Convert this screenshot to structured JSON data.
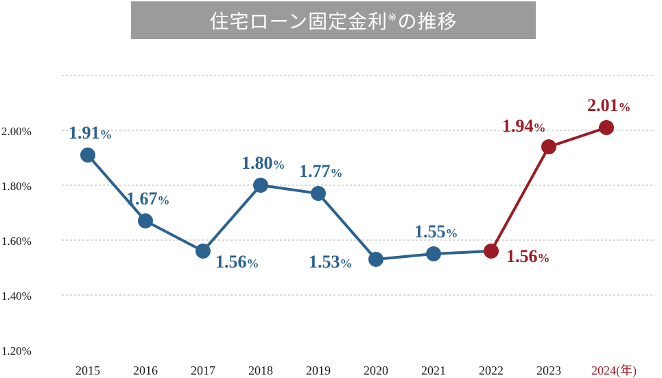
{
  "title": {
    "main": "住宅ローン固定金利",
    "mark": "※",
    "suffix": "の推移"
  },
  "chart_data": {
    "type": "line",
    "ylim": [
      1.2,
      2.2
    ],
    "y_ticks": [
      {
        "value": 2.0,
        "label": "2.00%"
      },
      {
        "value": 1.8,
        "label": "1.80%"
      },
      {
        "value": 1.6,
        "label": "1.60%"
      },
      {
        "value": 1.4,
        "label": "1.40%"
      },
      {
        "value": 1.2,
        "label": "1.20%"
      }
    ],
    "grid_values": [
      2.2,
      2.0,
      1.8,
      1.6,
      1.4
    ],
    "grid": "dashed horizontal",
    "x_unit_label": "(年)",
    "colors": {
      "history": "#2c628f",
      "recent": "#9b1b24",
      "grid": "#b0b0b0",
      "axis_text": "#1a1a1a"
    },
    "points": [
      {
        "year": "2015",
        "value": 1.91,
        "label": "1.91",
        "unit": "%",
        "color": "history",
        "label_pos": "above"
      },
      {
        "year": "2016",
        "value": 1.67,
        "label": "1.67",
        "unit": "%",
        "color": "history",
        "label_pos": "above"
      },
      {
        "year": "2017",
        "value": 1.56,
        "label": "1.56",
        "unit": "%",
        "color": "history",
        "label_pos": "below-right"
      },
      {
        "year": "2018",
        "value": 1.8,
        "label": "1.80",
        "unit": "%",
        "color": "history",
        "label_pos": "above"
      },
      {
        "year": "2019",
        "value": 1.77,
        "label": "1.77",
        "unit": "%",
        "color": "history",
        "label_pos": "above"
      },
      {
        "year": "2020",
        "value": 1.53,
        "label": "1.53",
        "unit": "%",
        "color": "history",
        "label_pos": "left"
      },
      {
        "year": "2021",
        "value": 1.55,
        "label": "1.55",
        "unit": "%",
        "color": "history",
        "label_pos": "above"
      },
      {
        "year": "2022",
        "value": 1.56,
        "label": "1.56",
        "unit": "%",
        "color": "recent",
        "label_pos": "right"
      },
      {
        "year": "2023",
        "value": 1.94,
        "label": "1.94",
        "unit": "%",
        "color": "recent",
        "label_pos": "above-left"
      },
      {
        "year": "2024",
        "value": 2.01,
        "label": "2.01",
        "unit": "%",
        "color": "recent",
        "label_pos": "above"
      }
    ],
    "series": [
      {
        "color": "history",
        "from": 0,
        "to": 7
      },
      {
        "color": "recent",
        "from": 7,
        "to": 9
      }
    ]
  }
}
